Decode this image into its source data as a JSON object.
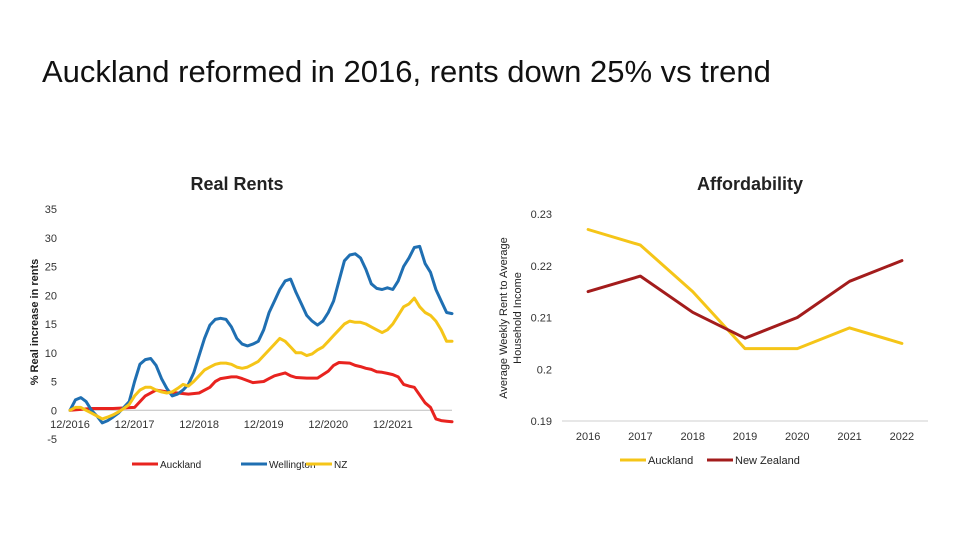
{
  "slide": {
    "title": "Auckland reformed in 2016, rents down 25% vs trend"
  },
  "chart_data": [
    {
      "type": "line",
      "title": "Real Rents",
      "xlabel": "",
      "ylabel": "% Real increase in rents",
      "ylim": [
        -5,
        35
      ],
      "yticks": [
        -5,
        0,
        5,
        10,
        15,
        20,
        25,
        30,
        35
      ],
      "x_tick_labels": [
        "12/2016",
        "12/2017",
        "12/2018",
        "12/2019",
        "12/2020",
        "12/2021"
      ],
      "x_tick_positions": [
        0,
        12,
        24,
        36,
        48,
        60
      ],
      "xlim": [
        0,
        71
      ],
      "legend_position": "bottom",
      "series": [
        {
          "name": "Auckland",
          "color": "#e8231f",
          "x": [
            0,
            4,
            8,
            12,
            14,
            16,
            18,
            20,
            22,
            24,
            26,
            27,
            28,
            30,
            31,
            32,
            34,
            36,
            37,
            38,
            40,
            41,
            42,
            44,
            46,
            48,
            49,
            50,
            52,
            53,
            54,
            55,
            56,
            57,
            58,
            59,
            60,
            61,
            62,
            63,
            64,
            66,
            67,
            68,
            69,
            70,
            71
          ],
          "values": [
            0,
            0.3,
            0.3,
            0.5,
            2.5,
            3.5,
            3.2,
            3,
            2.8,
            3,
            4,
            5,
            5.5,
            5.8,
            5.8,
            5.5,
            4.8,
            5,
            5.5,
            6,
            6.5,
            6,
            5.7,
            5.6,
            5.6,
            6.8,
            7.8,
            8.3,
            8.2,
            7.8,
            7.6,
            7.3,
            7.1,
            6.7,
            6.6,
            6.4,
            6.2,
            5.8,
            4.5,
            4.2,
            4,
            1.3,
            0.5,
            -1.5,
            -1.8,
            -1.9,
            -2
          ]
        },
        {
          "name": "Wellington",
          "color": "#1f6fb2",
          "x": [
            0,
            1,
            2,
            3,
            4,
            5,
            6,
            7,
            8,
            9,
            10,
            11,
            12,
            13,
            14,
            15,
            16,
            17,
            18,
            19,
            20,
            21,
            22,
            23,
            24,
            25,
            26,
            27,
            28,
            29,
            30,
            31,
            32,
            33,
            34,
            35,
            36,
            37,
            38,
            39,
            40,
            41,
            42,
            43,
            44,
            45,
            46,
            47,
            48,
            49,
            50,
            51,
            52,
            53,
            54,
            55,
            56,
            57,
            58,
            59,
            60,
            61,
            62,
            63,
            64,
            65,
            66,
            67,
            68,
            69,
            70,
            71
          ],
          "values": [
            0,
            1.8,
            2.2,
            1.5,
            0,
            -1,
            -2.2,
            -1.8,
            -1.2,
            -0.5,
            0.5,
            1.5,
            5,
            8,
            8.8,
            9,
            7.8,
            5.5,
            3.8,
            2.5,
            2.8,
            3.5,
            4.5,
            6.5,
            9.5,
            12.5,
            14.8,
            15.8,
            16,
            15.8,
            14.5,
            12.5,
            11.5,
            11.2,
            11.5,
            12,
            14,
            17,
            19,
            21,
            22.5,
            22.8,
            20.5,
            18.5,
            16.5,
            15.5,
            14.8,
            15.5,
            17,
            19,
            22.5,
            26,
            27,
            27.2,
            26.5,
            24.5,
            22,
            21.2,
            21,
            21.3,
            21,
            22.5,
            25,
            26.5,
            28.3,
            28.5,
            25.5,
            24,
            21,
            19,
            17,
            16.8
          ]
        },
        {
          "name": "NZ",
          "color": "#f5c518",
          "x": [
            0,
            1,
            2,
            3,
            4,
            5,
            6,
            7,
            8,
            9,
            10,
            11,
            12,
            13,
            14,
            15,
            16,
            17,
            18,
            19,
            20,
            21,
            22,
            23,
            24,
            25,
            26,
            27,
            28,
            29,
            30,
            31,
            32,
            33,
            34,
            35,
            36,
            37,
            38,
            39,
            40,
            41,
            42,
            43,
            44,
            45,
            46,
            47,
            48,
            49,
            50,
            51,
            52,
            53,
            54,
            55,
            56,
            57,
            58,
            59,
            60,
            61,
            62,
            63,
            64,
            65,
            66,
            67,
            68,
            69,
            70,
            71
          ],
          "values": [
            0,
            0.5,
            0.5,
            0,
            -0.5,
            -1,
            -1.5,
            -1.2,
            -0.8,
            -0.3,
            0.3,
            1,
            2.5,
            3.5,
            4,
            4,
            3.5,
            3.2,
            3,
            3.2,
            3.8,
            4.5,
            4.2,
            5,
            6,
            7,
            7.5,
            8,
            8.2,
            8.2,
            8,
            7.5,
            7.3,
            7.5,
            8,
            8.5,
            9.5,
            10.5,
            11.5,
            12.5,
            12,
            11,
            10,
            10,
            9.5,
            9.8,
            10.5,
            11,
            12,
            13,
            14,
            15,
            15.5,
            15.3,
            15.3,
            15,
            14.5,
            14,
            13.5,
            14,
            15,
            16.5,
            18,
            18.5,
            19.5,
            18,
            17,
            16.5,
            15.5,
            14,
            12,
            12
          ]
        }
      ]
    },
    {
      "type": "line",
      "title": "Affordability",
      "xlabel": "",
      "ylabel_line1": "Average Weekly Rent to Average",
      "ylabel_line2": "Household Income",
      "ylim": [
        0.19,
        0.23
      ],
      "yticks": [
        "0.19",
        "0.2",
        "0.21",
        "0.22",
        "0.23"
      ],
      "categories": [
        "2016",
        "2017",
        "2018",
        "2019",
        "2020",
        "2021",
        "2022"
      ],
      "legend_position": "bottom",
      "series": [
        {
          "name": "Auckland",
          "color": "#f5c518",
          "values": [
            0.227,
            0.224,
            0.215,
            0.204,
            0.204,
            0.208,
            0.205
          ]
        },
        {
          "name": "New Zealand",
          "color": "#a31c1c",
          "values": [
            0.215,
            0.218,
            0.211,
            0.206,
            0.21,
            0.217,
            0.221
          ]
        }
      ]
    }
  ]
}
